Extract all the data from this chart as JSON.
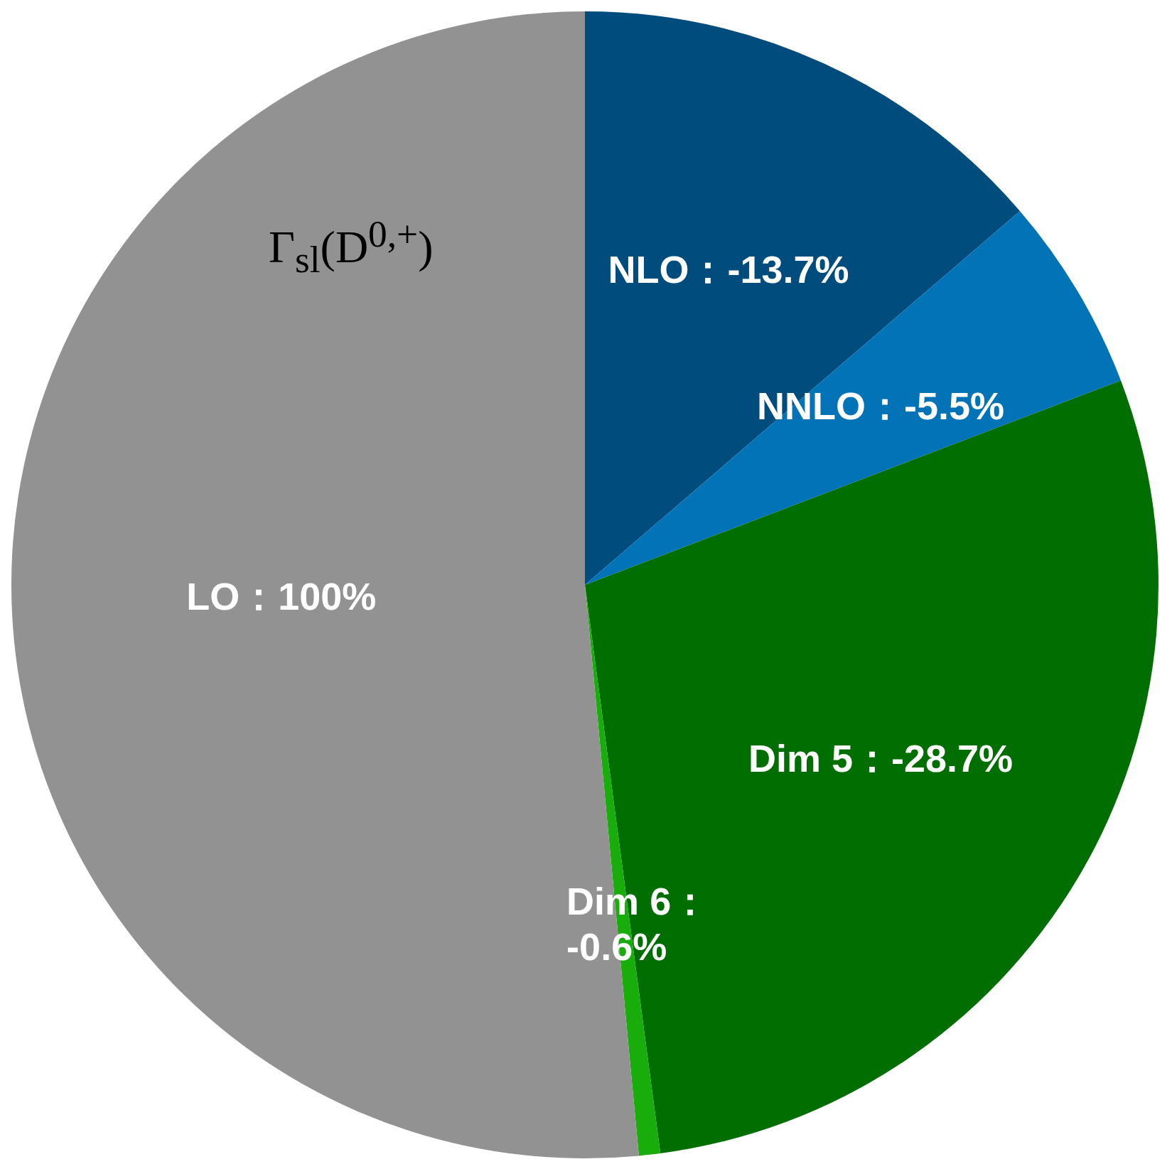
{
  "chart_data": {
    "type": "pie",
    "title": "Γ$_{sl}$(D$^{0,+}$)",
    "categories": [
      "NLO：-13.7%",
      "NNLO：-5.5%",
      "Dim 5：-28.7%",
      "Dim 6：-0.6%",
      "LO：100%"
    ],
    "values": [
      13.7,
      5.5,
      28.7,
      0.6,
      51.5
    ],
    "colors": [
      "#004d7d",
      "#0373b8",
      "#006e00",
      "#18ad0a",
      "#929292"
    ],
    "legend": false
  }
}
